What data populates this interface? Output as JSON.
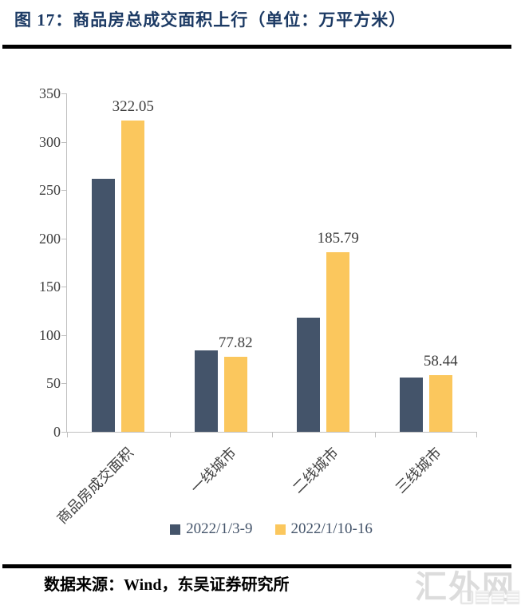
{
  "title": "图 17：商品房总成交面积上行（单位：万平方米）",
  "footer": {
    "source": "数据来源：Wind，东吴证券研究所"
  },
  "watermark": {
    "text": "汇外网",
    "logo": "blurred-logo"
  },
  "colors": {
    "title": "#1C3A64",
    "series_1": "#44546A",
    "series_2": "#FBC75D",
    "axis": "#BFBFBF",
    "tick_label": "#404040",
    "data_label": "#3D3D3D",
    "legend_text": "#44546A",
    "watermark": "#DCDCDC"
  },
  "chart_data": {
    "type": "bar",
    "title": "商品房总成交面积上行",
    "unit": "万平方米",
    "categories": [
      "商品房成交面积",
      "一线城市",
      "二线城市",
      "三线城市"
    ],
    "series": [
      {
        "name": "2022/1/3-9",
        "color": "#44546A",
        "values": [
          262,
          84,
          118,
          56
        ],
        "value_labels": [
          "",
          "",
          "",
          ""
        ]
      },
      {
        "name": "2022/1/10-16",
        "color": "#FBC75D",
        "values": [
          322.05,
          77.82,
          185.79,
          58.44
        ],
        "value_labels": [
          "322.05",
          "77.82",
          "185.79",
          "58.44"
        ]
      }
    ],
    "xlabel": "",
    "ylabel": "",
    "ylim": [
      0,
      350
    ],
    "ytick_step": 50,
    "grid": false,
    "legend_position": "bottom"
  }
}
